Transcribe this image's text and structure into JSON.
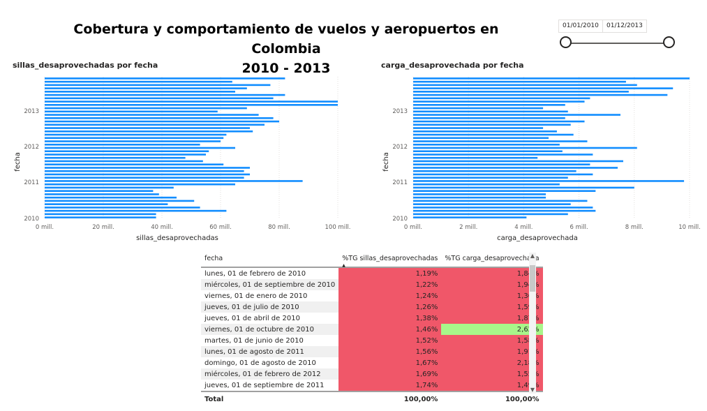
{
  "header": {
    "title_line1": "Cobertura y comportamiento de vuelos y aeropuertos en Colombia",
    "title_line2": "2010 - 2013"
  },
  "slicer": {
    "start_date": "01/01/2010",
    "end_date": "01/12/2013",
    "range_selected": [
      0,
      1
    ]
  },
  "colors": {
    "bar": "#118dff",
    "red_cell": "#f05769",
    "green_cell": "#a8f68a",
    "axis_text": "#605e5c",
    "grid": "#e1dfdd"
  },
  "chart_data": [
    {
      "type": "bar",
      "orientation": "horizontal",
      "title": "sillas_desaprovechadas por fecha",
      "xlabel": "sillas_desaprovechadas",
      "ylabel": "fecha",
      "xlim": [
        0,
        100
      ],
      "x_unit": "mill.",
      "x_ticks": [
        "0 mill.",
        "20 mill.",
        "40 mill.",
        "60 mill.",
        "80 mill.",
        "100 mill."
      ],
      "y_ticks": [
        "2013",
        "2012",
        "2011",
        "2010"
      ],
      "grid": true,
      "values": [
        82,
        64,
        77,
        69,
        65,
        82,
        78,
        100,
        100,
        69,
        59,
        73,
        78,
        80,
        75,
        70,
        71,
        62,
        61,
        60,
        53,
        65,
        56,
        55,
        48,
        54,
        61,
        70,
        68,
        70,
        68,
        88,
        65,
        44,
        37,
        39,
        45,
        51,
        42,
        53,
        62,
        38,
        38
      ]
    },
    {
      "type": "bar",
      "orientation": "horizontal",
      "title": "carga_desaprovechada por fecha",
      "xlabel": "carga_desaprovechada",
      "ylabel": "fecha",
      "xlim": [
        0,
        10
      ],
      "x_unit": "mill.",
      "x_ticks": [
        "0 mill.",
        "2 mill.",
        "4 mill.",
        "6 mill.",
        "8 mill.",
        "10 mill."
      ],
      "y_ticks": [
        "2013",
        "2012",
        "2011",
        "2010"
      ],
      "grid": true,
      "values": [
        10,
        7.7,
        8.1,
        9.4,
        7.8,
        9.2,
        6.4,
        6.2,
        5.5,
        4.7,
        5.6,
        7.5,
        5.5,
        6.2,
        5.7,
        4.7,
        5.2,
        5.8,
        4.9,
        6.3,
        5.3,
        8.1,
        5.4,
        6.5,
        4.5,
        7.6,
        6.4,
        7.4,
        5.9,
        6.5,
        5.6,
        9.8,
        5.3,
        8.0,
        6.6,
        4.8,
        4.8,
        6.3,
        5.7,
        6.5,
        6.6,
        5.6,
        4.1
      ]
    }
  ],
  "table": {
    "columns": [
      "fecha",
      "%TG sillas_desaprovechadas",
      "%TG carga_desaprovechada"
    ],
    "rows": [
      {
        "fecha": "lunes, 01 de febrero de 2010",
        "sillas": "1,19%",
        "carga": "1,84%",
        "carga_color": "red"
      },
      {
        "fecha": "miércoles, 01 de septiembre de 2010",
        "sillas": "1,22%",
        "carga": "1,94%",
        "carga_color": "red"
      },
      {
        "fecha": "viernes, 01 de enero de 2010",
        "sillas": "1,24%",
        "carga": "1,36%",
        "carga_color": "red"
      },
      {
        "fecha": "jueves, 01 de julio de 2010",
        "sillas": "1,26%",
        "carga": "1,59%",
        "carga_color": "red"
      },
      {
        "fecha": "jueves, 01 de abril de 2010",
        "sillas": "1,38%",
        "carga": "1,87%",
        "carga_color": "red"
      },
      {
        "fecha": "viernes, 01 de octubre de 2010",
        "sillas": "1,46%",
        "carga": "2,62%",
        "carga_color": "green"
      },
      {
        "fecha": "martes, 01 de junio de 2010",
        "sillas": "1,52%",
        "carga": "1,58%",
        "carga_color": "red"
      },
      {
        "fecha": "lunes, 01 de agosto de 2011",
        "sillas": "1,56%",
        "carga": "1,91%",
        "carga_color": "red"
      },
      {
        "fecha": "domingo, 01 de agosto de 2010",
        "sillas": "1,67%",
        "carga": "2,18%",
        "carga_color": "red"
      },
      {
        "fecha": "miércoles, 01 de febrero de 2012",
        "sillas": "1,69%",
        "carga": "1,55%",
        "carga_color": "red"
      },
      {
        "fecha": "jueves, 01 de septiembre de 2011",
        "sillas": "1,74%",
        "carga": "1,49%",
        "carga_color": "red"
      }
    ],
    "total": {
      "label": "Total",
      "sillas": "100,00%",
      "carga": "100,00%"
    }
  }
}
